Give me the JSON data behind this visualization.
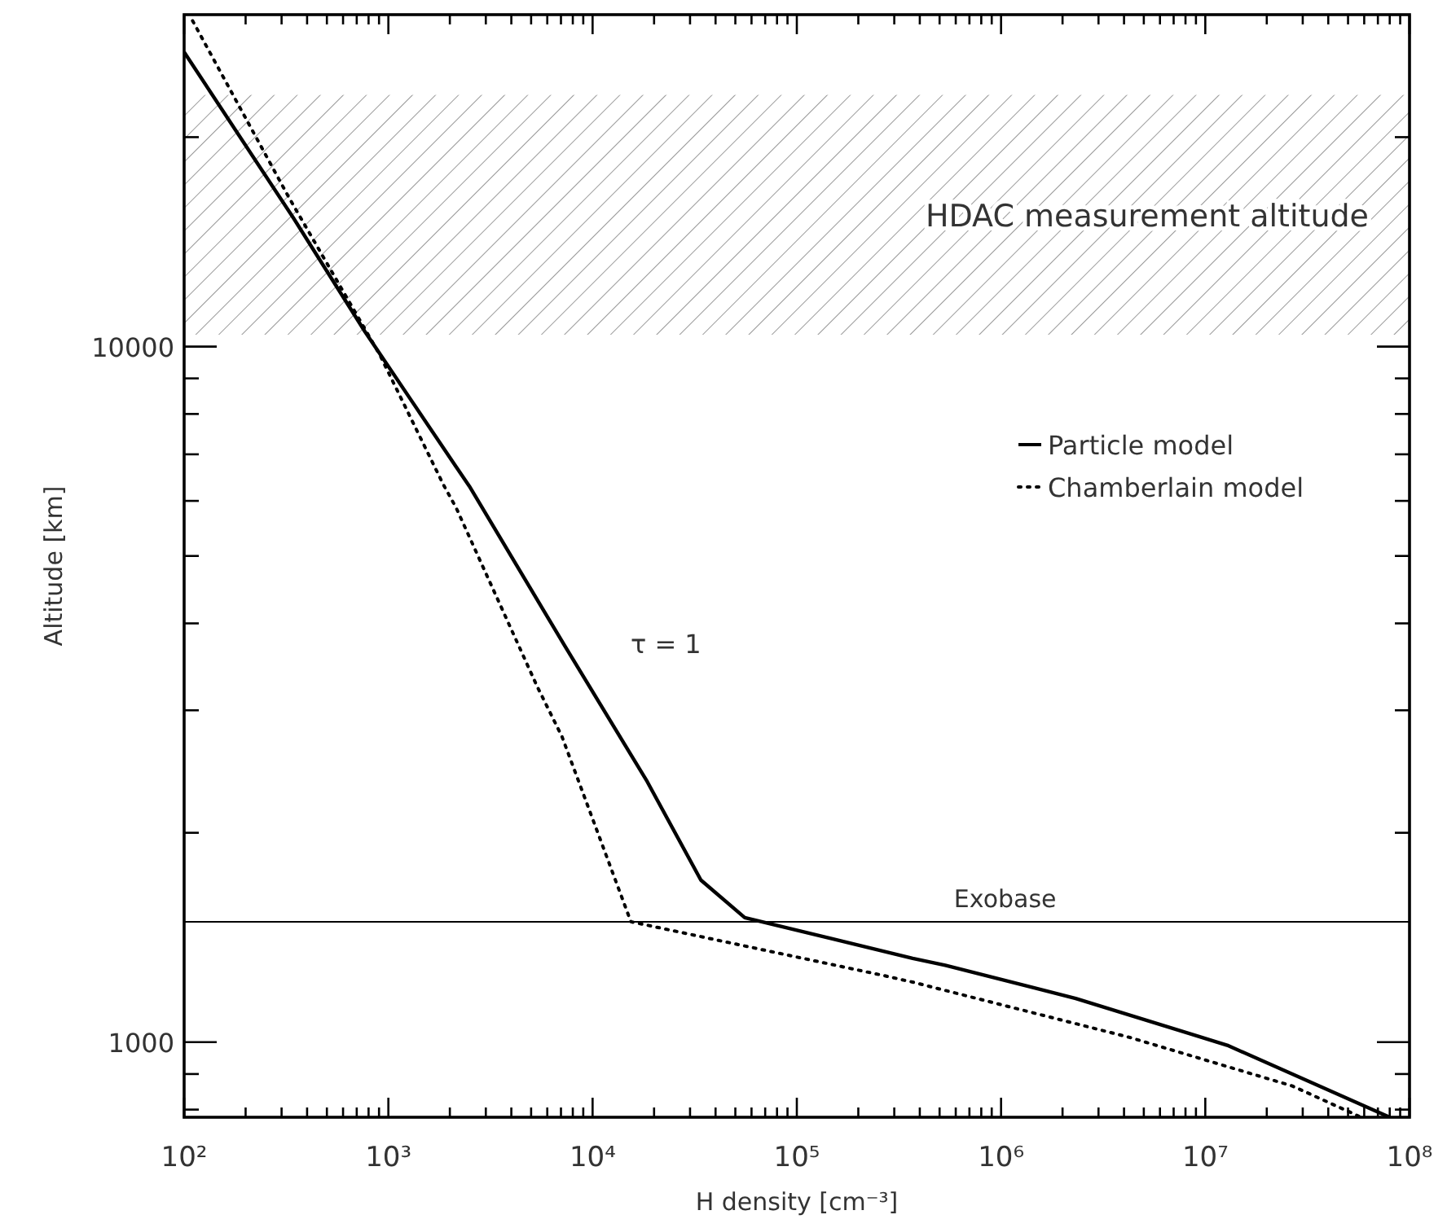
{
  "chart_data": {
    "type": "line",
    "xlabel": "H density [cm⁻³]",
    "ylabel": "Altitude [km]",
    "log": "xy",
    "legend": "top right",
    "xlim": [
      100,
      100000000
    ],
    "ylim": [
      780,
      30000
    ],
    "xticks": [
      {
        "value": 100,
        "label": "10²"
      },
      {
        "value": 200,
        "label": null
      },
      {
        "value": 300,
        "label": null
      },
      {
        "value": 400,
        "label": null
      },
      {
        "value": 500,
        "label": null
      },
      {
        "value": 600,
        "label": null
      },
      {
        "value": 700,
        "label": null
      },
      {
        "value": 800,
        "label": null
      },
      {
        "value": 900,
        "label": null
      },
      {
        "value": 1000,
        "label": "10³"
      },
      {
        "value": 2000,
        "label": null
      },
      {
        "value": 3000,
        "label": null
      },
      {
        "value": 4000,
        "label": null
      },
      {
        "value": 5000,
        "label": null
      },
      {
        "value": 6000,
        "label": null
      },
      {
        "value": 7000,
        "label": null
      },
      {
        "value": 8000,
        "label": null
      },
      {
        "value": 9000,
        "label": null
      },
      {
        "value": 10000,
        "label": "10⁴"
      },
      {
        "value": 20000,
        "label": null
      },
      {
        "value": 30000,
        "label": null
      },
      {
        "value": 40000,
        "label": null
      },
      {
        "value": 50000,
        "label": null
      },
      {
        "value": 60000,
        "label": null
      },
      {
        "value": 70000,
        "label": null
      },
      {
        "value": 80000,
        "label": null
      },
      {
        "value": 90000,
        "label": null
      },
      {
        "value": 100000,
        "label": "10⁵"
      },
      {
        "value": 200000,
        "label": null
      },
      {
        "value": 300000,
        "label": null
      },
      {
        "value": 400000,
        "label": null
      },
      {
        "value": 500000,
        "label": null
      },
      {
        "value": 600000,
        "label": null
      },
      {
        "value": 700000,
        "label": null
      },
      {
        "value": 800000,
        "label": null
      },
      {
        "value": 900000,
        "label": null
      },
      {
        "value": 1000000,
        "label": "10⁶"
      },
      {
        "value": 2000000,
        "label": null
      },
      {
        "value": 3000000,
        "label": null
      },
      {
        "value": 4000000,
        "label": null
      },
      {
        "value": 5000000,
        "label": null
      },
      {
        "value": 6000000,
        "label": null
      },
      {
        "value": 7000000,
        "label": null
      },
      {
        "value": 8000000,
        "label": null
      },
      {
        "value": 9000000,
        "label": null
      },
      {
        "value": 10000000,
        "label": "10⁷"
      },
      {
        "value": 20000000,
        "label": null
      },
      {
        "value": 30000000,
        "label": null
      },
      {
        "value": 40000000,
        "label": null
      },
      {
        "value": 50000000,
        "label": null
      },
      {
        "value": 60000000,
        "label": null
      },
      {
        "value": 70000000,
        "label": null
      },
      {
        "value": 80000000,
        "label": null
      },
      {
        "value": 90000000,
        "label": null
      },
      {
        "value": 100000000,
        "label": "10⁸"
      }
    ],
    "yticks": [
      {
        "value": 800,
        "label": null
      },
      {
        "value": 900,
        "label": null
      },
      1000,
      {
        "value": 2000,
        "label": null
      },
      {
        "value": 3000,
        "label": null
      },
      {
        "value": 4000,
        "label": null
      },
      {
        "value": 5000,
        "label": null
      },
      {
        "value": 6000,
        "label": null
      },
      {
        "value": 7000,
        "label": null
      },
      {
        "value": 8000,
        "label": null
      },
      {
        "value": 9000,
        "label": null
      },
      10000,
      {
        "value": 20000,
        "label": null
      }
    ],
    "series": [
      {
        "name": "Particle model",
        "color": "#000000",
        "line_style": "solid",
        "x": [
          100,
          343,
          769,
          2150,
          2490,
          7360,
          18500,
          33900,
          55600,
          369000,
          533000,
          2320000,
          12800000,
          80000000
        ],
        "values": [
          26500,
          15300,
          10500,
          6710,
          6300,
          3700,
          2370,
          1710,
          1510,
          1320,
          1290,
          1156,
          990,
          780
        ]
      },
      {
        "name": "Chamberlain model",
        "color": "#000000",
        "line_style": "dotted",
        "x": [
          110,
          325,
          908,
          1860,
          2150,
          5370,
          7080,
          15400,
          256000,
          369000,
          4260000,
          26700000,
          58000000
        ],
        "values": [
          29400,
          16400,
          9730,
          6330,
          5860,
          3240,
          2750,
          1490,
          1250,
          1220,
          1016,
          865,
          780
        ]
      }
    ],
    "ref_lines": [
      {
        "axis": "y",
        "value": 1490,
        "label": "Exobase",
        "color": "#000000"
      }
    ],
    "bands": [
      {
        "axis": "y",
        "from": 10400,
        "to": 23000,
        "label": "HDAC measurement altitude",
        "color": "#999999"
      }
    ],
    "annotations": [
      {
        "text": "τ = 1",
        "x": 7360,
        "y": 3700
      }
    ]
  }
}
